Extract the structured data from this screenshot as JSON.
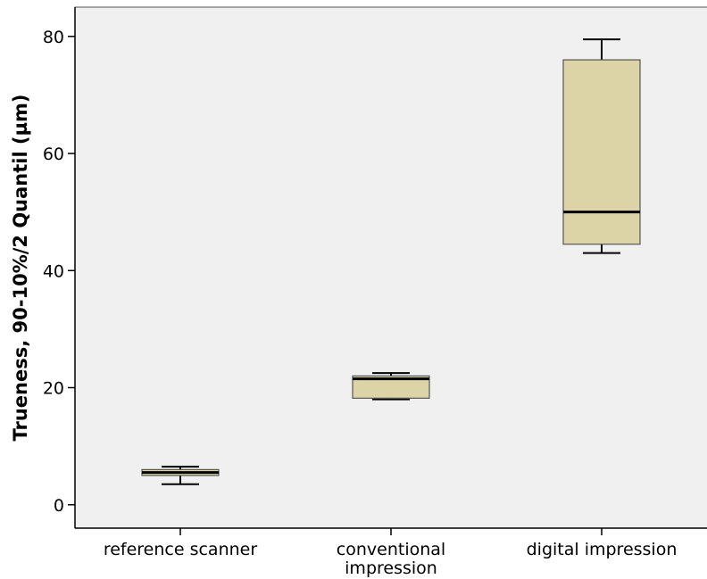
{
  "chart_data": {
    "type": "boxplot",
    "title": "",
    "xlabel": "",
    "ylabel": "Trueness, 90-10%/2 Quantil (µm)",
    "ylim": [
      -4,
      85
    ],
    "yticks": [
      0,
      20,
      40,
      60,
      80
    ],
    "grid": false,
    "categories": [
      {
        "label_lines": [
          "reference scanner"
        ],
        "whisker_low": 3.5,
        "q1": 5.0,
        "median": 5.5,
        "q3": 6.0,
        "whisker_high": 6.5
      },
      {
        "label_lines": [
          "conventional",
          "impression"
        ],
        "whisker_low": 18.0,
        "q1": 18.2,
        "median": 21.5,
        "q3": 22.0,
        "whisker_high": 22.5
      },
      {
        "label_lines": [
          "digital impression"
        ],
        "whisker_low": 43.0,
        "q1": 44.5,
        "median": 50.0,
        "q3": 76.0,
        "whisker_high": 79.5
      }
    ],
    "colors": {
      "plot_background": "#f0f0f0",
      "box_fill": "#dcd4a6",
      "axis": "#000000"
    }
  }
}
